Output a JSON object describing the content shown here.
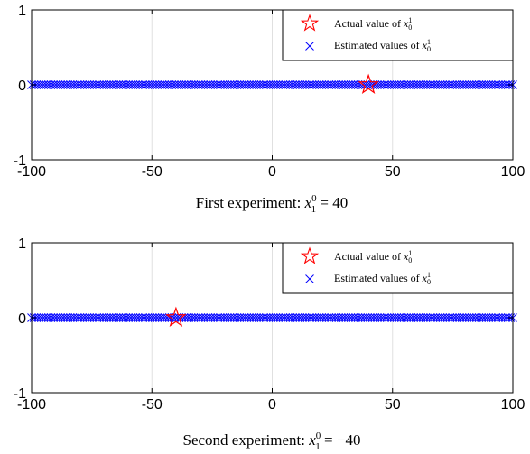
{
  "chart_data": [
    {
      "type": "scatter",
      "xlim": [
        -100,
        100
      ],
      "ylim": [
        -1,
        1
      ],
      "x_ticks": [
        -100,
        -50,
        0,
        50,
        100
      ],
      "y_ticks": [
        -1,
        0,
        1
      ],
      "grid": "vertical",
      "legend_position": "top-right",
      "caption": {
        "prefix": "First experiment: ",
        "var": "x",
        "sub": "1",
        "sup": "0",
        "eq": " = 40"
      },
      "legend": [
        {
          "prefix": "Actual value of ",
          "var": "x",
          "sub": "0",
          "sup": "1"
        },
        {
          "prefix": "Estimated values of ",
          "var": "x",
          "sub": "0",
          "sup": "1"
        }
      ],
      "series": [
        {
          "marker": "star",
          "color": "#ff0000",
          "x": [
            40
          ],
          "y": [
            0
          ]
        },
        {
          "marker": "x",
          "color": "#0000ff",
          "x_range": [
            -100,
            100
          ],
          "y": 0,
          "count": 200
        }
      ]
    },
    {
      "type": "scatter",
      "xlim": [
        -100,
        100
      ],
      "ylim": [
        -1,
        1
      ],
      "x_ticks": [
        -100,
        -50,
        0,
        50,
        100
      ],
      "y_ticks": [
        -1,
        0,
        1
      ],
      "grid": "vertical",
      "legend_position": "top-right",
      "caption": {
        "prefix": "Second experiment: ",
        "var": "x",
        "sub": "1",
        "sup": "0",
        "eq": " = −40"
      },
      "legend": [
        {
          "prefix": "Actual value of ",
          "var": "x",
          "sub": "0",
          "sup": "1"
        },
        {
          "prefix": "Estimated values of ",
          "var": "x",
          "sub": "0",
          "sup": "1"
        }
      ],
      "series": [
        {
          "marker": "star",
          "color": "#ff0000",
          "x": [
            -40
          ],
          "y": [
            0
          ]
        },
        {
          "marker": "x",
          "color": "#0000ff",
          "x_range": [
            -100,
            100
          ],
          "y": 0,
          "count": 200
        }
      ]
    }
  ]
}
